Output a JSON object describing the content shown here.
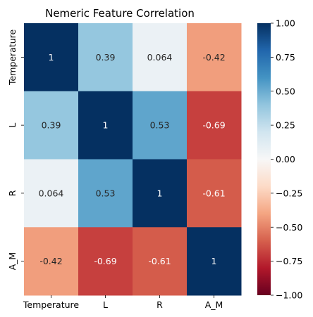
{
  "chart_data": {
    "type": "heatmap",
    "title": "Nemeric Feature Correlation",
    "xlabel": "",
    "ylabel": "",
    "x_categories": [
      "Temperature",
      "L",
      "R",
      "A_M"
    ],
    "y_categories": [
      "Temperature",
      "L",
      "R",
      "A_M"
    ],
    "values": [
      [
        1,
        0.39,
        0.064,
        -0.42
      ],
      [
        0.39,
        1,
        0.53,
        -0.69
      ],
      [
        0.064,
        0.53,
        1,
        -0.61
      ],
      [
        -0.42,
        -0.69,
        -0.61,
        1
      ]
    ],
    "cell_labels": [
      [
        "1",
        "0.39",
        "0.064",
        "-0.42"
      ],
      [
        "0.39",
        "1",
        "0.53",
        "-0.69"
      ],
      [
        "0.064",
        "0.53",
        "1",
        "-0.61"
      ],
      [
        "-0.42",
        "-0.69",
        "-0.61",
        "1"
      ]
    ],
    "colorbar": {
      "range": [
        -1.0,
        1.0
      ],
      "ticks": [
        -1.0,
        -0.75,
        -0.5,
        -0.25,
        0.0,
        0.25,
        0.5,
        0.75,
        1.0
      ],
      "tick_labels": [
        "−1.00",
        "−0.75",
        "−0.50",
        "−0.25",
        "0.00",
        "0.25",
        "0.50",
        "0.75",
        "1.00"
      ],
      "colormap": "RdBu",
      "colormap_stops": [
        "#67001f",
        "#b2182b",
        "#d6604d",
        "#f4a582",
        "#fddbc7",
        "#f7f7f7",
        "#d1e5f0",
        "#92c5de",
        "#4393c3",
        "#2166ac",
        "#053061"
      ]
    },
    "grid": false
  }
}
